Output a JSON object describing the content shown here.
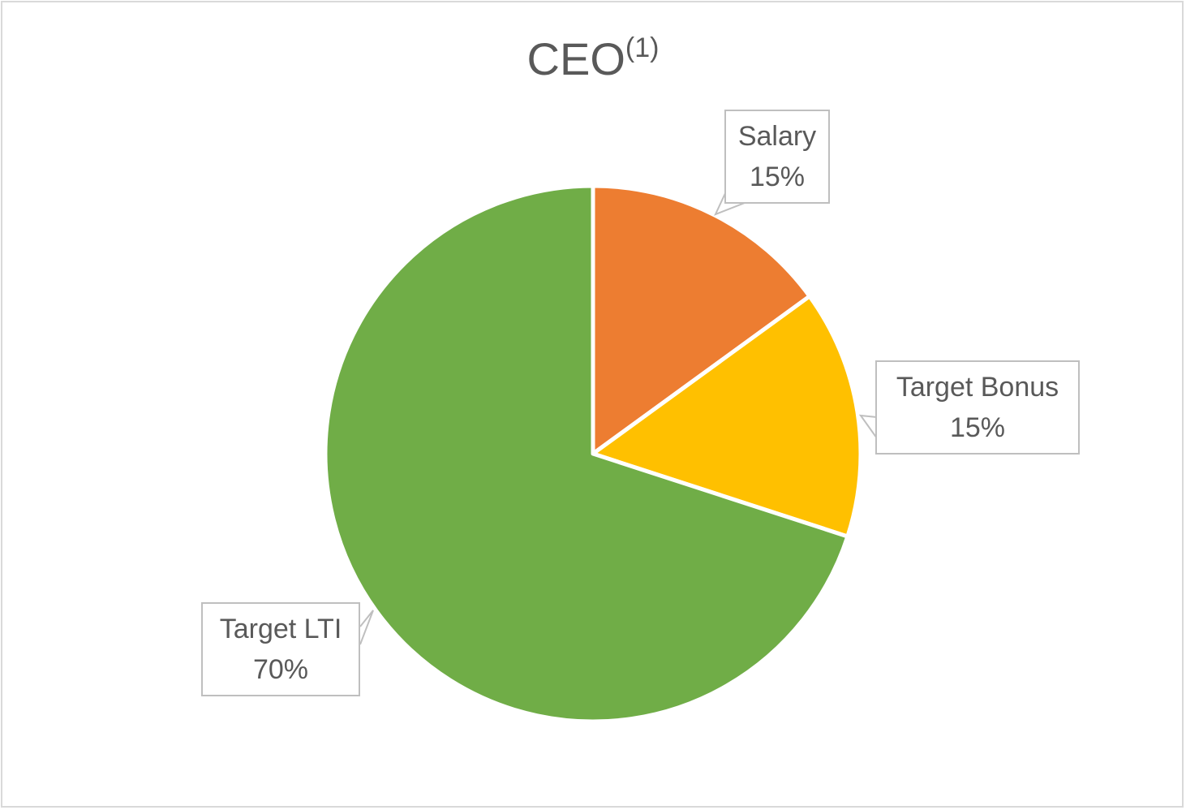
{
  "chart_data": {
    "type": "pie",
    "title": "CEO",
    "title_superscript": "(1)",
    "slices": [
      {
        "label": "Salary",
        "value": 15,
        "value_label": "15%",
        "color": "#ED7D31"
      },
      {
        "label": "Target Bonus",
        "value": 15,
        "value_label": "15%",
        "color": "#FFC000"
      },
      {
        "label": "Target LTI",
        "value": 70,
        "value_label": "70%",
        "color": "#70AD47"
      }
    ],
    "start_angle": "12 o'clock",
    "direction": "clockwise",
    "labels": "callouts"
  }
}
